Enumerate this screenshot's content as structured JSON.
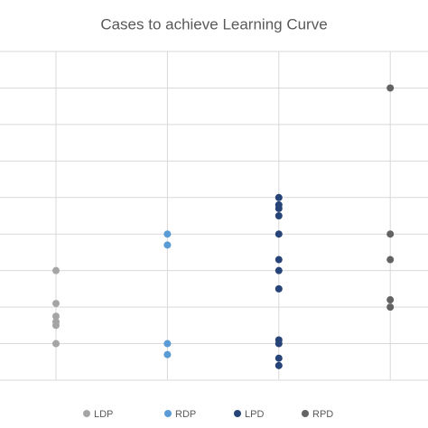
{
  "chart_data": {
    "type": "scatter",
    "title": "Cases to achieve Learning Curve",
    "series": [
      {
        "name": "LDP",
        "color": "#a5a5a5",
        "values": [
          30,
          21,
          17.5,
          16,
          15,
          10
        ]
      },
      {
        "name": "RDP",
        "color": "#5b9bd5",
        "values": [
          40,
          37,
          10,
          7
        ]
      },
      {
        "name": "LPD",
        "color": "#264478",
        "values": [
          50,
          48,
          47,
          45,
          40,
          33,
          30,
          25,
          11,
          10,
          6,
          4
        ]
      },
      {
        "name": "RPD",
        "color": "#636363",
        "values": [
          80,
          40,
          33,
          22,
          20
        ]
      }
    ],
    "ylim": [
      0,
      90
    ],
    "yticks": [
      0,
      10,
      20,
      30,
      40,
      50,
      60,
      70,
      80,
      90
    ],
    "grid": true
  }
}
